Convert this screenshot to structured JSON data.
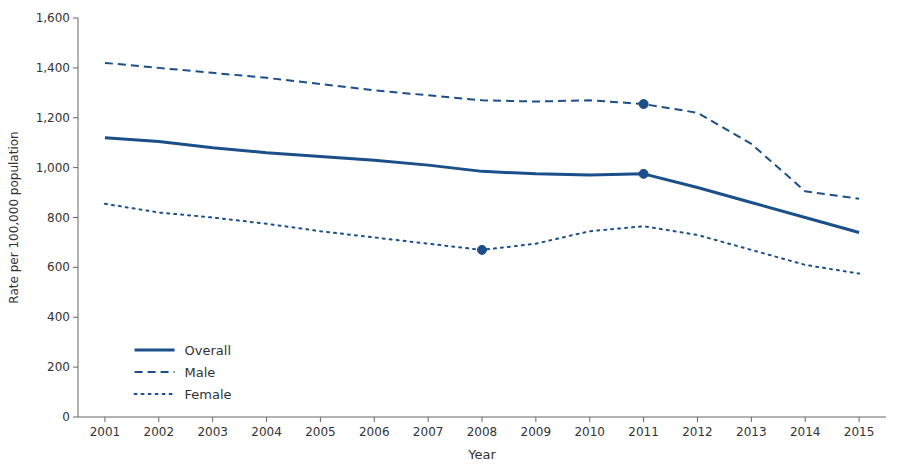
{
  "chart_data": {
    "type": "line",
    "xlabel": "Year",
    "ylabel": "Rate per 100,000 population",
    "x": [
      2001,
      2002,
      2003,
      2004,
      2005,
      2006,
      2007,
      2008,
      2009,
      2010,
      2011,
      2012,
      2013,
      2014,
      2015
    ],
    "xlim": [
      2000.5,
      2015.5
    ],
    "xticks": [
      2001,
      2002,
      2003,
      2004,
      2005,
      2006,
      2007,
      2008,
      2009,
      2010,
      2011,
      2012,
      2013,
      2014,
      2015
    ],
    "ylim": [
      0,
      1600
    ],
    "yticks": [
      0,
      200,
      400,
      600,
      800,
      {
        "value": 1000,
        "label": "1,000"
      },
      {
        "value": 1200,
        "label": "1,200"
      },
      {
        "value": 1400,
        "label": "1,400"
      },
      {
        "value": 1600,
        "label": "1,600"
      }
    ],
    "grid": false,
    "legend": "lower left",
    "series": [
      {
        "name": "Overall",
        "color": "#1B4F8A",
        "line_style": "solid",
        "values": [
          1120,
          1105,
          1080,
          1060,
          1045,
          1030,
          1010,
          985,
          975,
          970,
          975,
          920,
          860,
          800,
          740
        ]
      },
      {
        "name": "Male",
        "color": "#1B4F8A",
        "line_style": "dashed",
        "values": [
          1420,
          1400,
          1380,
          1360,
          1335,
          1310,
          1290,
          1270,
          1265,
          1270,
          1255,
          1220,
          1095,
          905,
          875
        ]
      },
      {
        "name": "Female",
        "color": "#1B4F8A",
        "line_style": "dotted",
        "values": [
          855,
          820,
          800,
          775,
          745,
          720,
          695,
          670,
          695,
          745,
          765,
          730,
          670,
          610,
          575
        ]
      },
      {
        "type": "scatter",
        "marker": "circle",
        "color": "#1B4F8A",
        "x": [
          2011
        ],
        "values": [
          975
        ]
      },
      {
        "type": "scatter",
        "marker": "circle",
        "color": "#1B4F8A",
        "x": [
          2011
        ],
        "values": [
          1255
        ]
      },
      {
        "type": "scatter",
        "marker": "circle",
        "color": "#1B4F8A",
        "x": [
          2008
        ],
        "values": [
          670
        ]
      }
    ]
  }
}
